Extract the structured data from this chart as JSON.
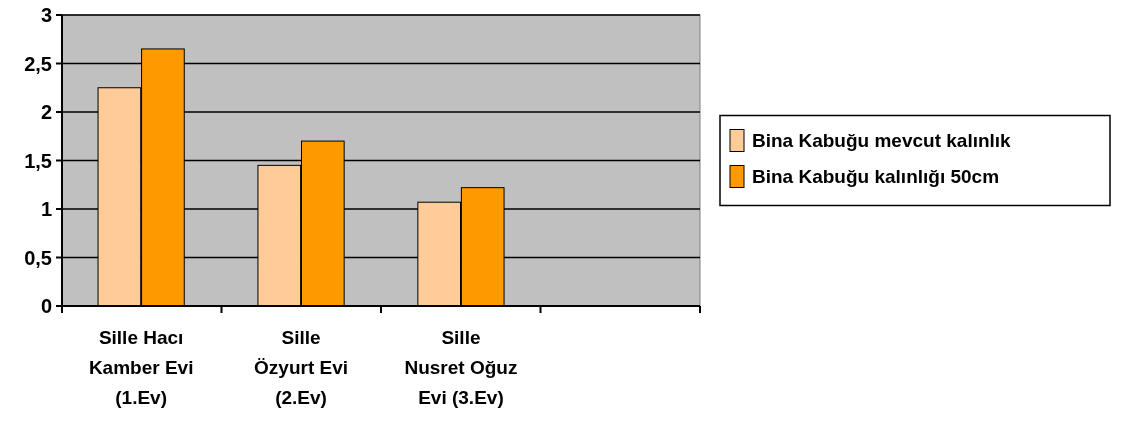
{
  "chart_data": {
    "type": "bar",
    "categories": [
      "Sille Hacı Kamber Evi (1.Ev)",
      "Sille Özyurt Evi (2.Ev)",
      "Sille Nusret Oğuz Evi (3.Ev)",
      null
    ],
    "series": [
      {
        "name": "Bina Kabuğu mevcut kalınlık",
        "color": "#ffcc99",
        "values": [
          2.25,
          1.45,
          1.07,
          null
        ]
      },
      {
        "name": "Bina Kabuğu kalınlığı 50cm",
        "color": "#ff9900",
        "values": [
          2.65,
          1.7,
          1.22,
          null
        ]
      }
    ],
    "ylim": [
      0,
      3
    ],
    "yticks": [
      0,
      {
        "value": 0.5,
        "label": "0,5"
      },
      1,
      {
        "value": 1.5,
        "label": "1,5"
      },
      2,
      {
        "value": 2.5,
        "label": "2,5"
      },
      3
    ],
    "grid": "y",
    "legend": "right"
  }
}
